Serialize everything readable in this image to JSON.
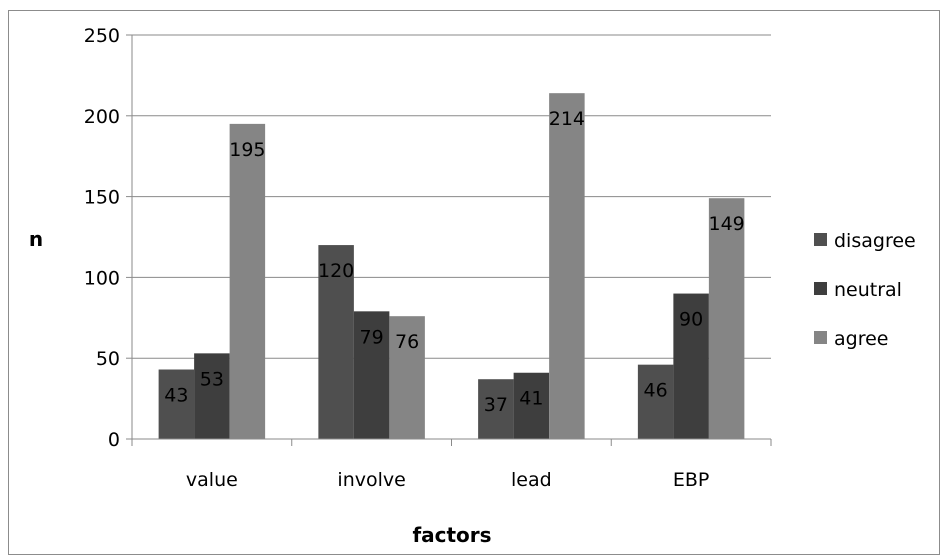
{
  "chart_data": {
    "type": "bar",
    "categories": [
      "value",
      "involve",
      "lead",
      "EBP"
    ],
    "series": [
      {
        "name": "disagree",
        "values": [
          43,
          120,
          37,
          46
        ],
        "color": "#4f4f4f"
      },
      {
        "name": "neutral",
        "values": [
          53,
          79,
          41,
          90
        ],
        "color": "#3e3e3e"
      },
      {
        "name": "agree",
        "values": [
          195,
          76,
          214,
          149
        ],
        "color": "#858585"
      }
    ],
    "xlabel": "factors",
    "ylabel": "n",
    "ylim": [
      0,
      250
    ],
    "yticks": [
      0,
      50,
      100,
      150,
      200,
      250
    ],
    "grid": true,
    "legend_position": "right"
  }
}
